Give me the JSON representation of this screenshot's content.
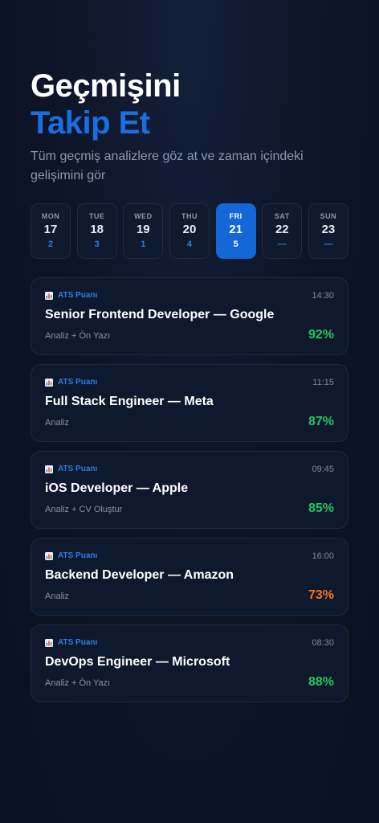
{
  "header": {
    "title_line1": "Geçmişini",
    "title_line2": "Takip Et",
    "subtitle": "Tüm geçmiş analizlere göz at ve zaman içindeki gelişimini gör"
  },
  "week": {
    "selected_index": 4,
    "days": [
      {
        "name": "MON",
        "date": "17",
        "count": "2"
      },
      {
        "name": "TUE",
        "date": "18",
        "count": "3"
      },
      {
        "name": "WED",
        "date": "19",
        "count": "1"
      },
      {
        "name": "THU",
        "date": "20",
        "count": "4"
      },
      {
        "name": "FRI",
        "date": "21",
        "count": "5"
      },
      {
        "name": "SAT",
        "date": "22",
        "count": "—"
      },
      {
        "name": "SUN",
        "date": "23",
        "count": "—"
      }
    ]
  },
  "history": [
    {
      "tag": "ATS Puanı",
      "time": "14:30",
      "job": "Senior Frontend Developer — Google",
      "type": "Analiz + Ön Yazı",
      "score": "92%",
      "score_color": "#22c55e"
    },
    {
      "tag": "ATS Puanı",
      "time": "11:15",
      "job": "Full Stack Engineer — Meta",
      "type": "Analiz",
      "score": "87%",
      "score_color": "#22c55e"
    },
    {
      "tag": "ATS Puanı",
      "time": "09:45",
      "job": "iOS Developer — Apple",
      "type": "Analiz + CV Oluştur",
      "score": "85%",
      "score_color": "#22c55e"
    },
    {
      "tag": "ATS Puanı",
      "time": "16:00",
      "job": "Backend Developer — Amazon",
      "type": "Analiz",
      "score": "73%",
      "score_color": "#f97316"
    },
    {
      "tag": "ATS Puanı",
      "time": "08:30",
      "job": "DevOps Engineer — Microsoft",
      "type": "Analiz + Ön Yazı",
      "score": "88%",
      "score_color": "#22c55e"
    }
  ],
  "colors": {
    "accent": "#1a6fe0",
    "background": "#0c1426",
    "score_good": "#22c55e",
    "score_mid": "#f97316"
  },
  "icons": {
    "tag_icon": "bar-chart-icon"
  }
}
